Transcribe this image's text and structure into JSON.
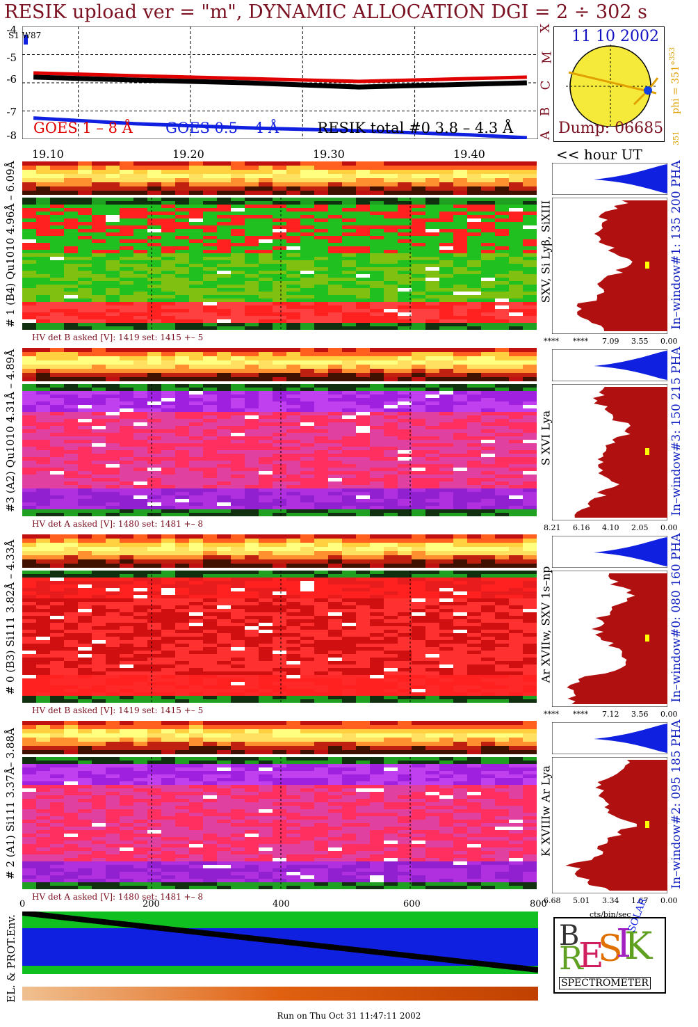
{
  "title": "RESIK upload ver = \"m\", DYNAMIC ALLOCATION  DGI =   2 ÷ 302 s",
  "sun": {
    "date": "11 10 2002",
    "dump": "Dump: 06685",
    "phi_label": "phi = 351°",
    "phi_sup": "353",
    "phi_bottom": "351"
  },
  "goes": {
    "corner_label": "S1 W87",
    "classes": [
      "X",
      "M",
      "C",
      "B",
      "A"
    ],
    "y_ticks": [
      "-4",
      "-5",
      "-6",
      "-7",
      "-8"
    ],
    "legend": [
      {
        "text": "GOES 1 – 8 Å",
        "color": "#e00000"
      },
      {
        "text": "GOES 0.5 – 4 Å",
        "color": "#1020e0"
      },
      {
        "text": "RESIK total #0  3.8 – 4.3 Å",
        "color": "#000000"
      }
    ]
  },
  "time_axis": {
    "ticks": [
      "19.10",
      "19.20",
      "19.30",
      "19.40"
    ],
    "unit": "<< hour UT"
  },
  "panels": [
    {
      "label": "# 1 (B4) Qu1010 4.96Å – 6.09Å",
      "lines": "SXV, Si Lyβ, SiXIII",
      "hv": "HV det B asked [V]:  1419 set:  1415  +–    5",
      "window": "In–window#1:  135 200 PHA",
      "pha_ticks": [
        "****",
        "****",
        "7.09",
        "3.55",
        "0.00"
      ],
      "theme": "green",
      "band": "yellow"
    },
    {
      "label": "#3 (A2) Qu1010  4.31Å – 4.89Å",
      "lines": "S XVI Lya",
      "hv": "HV det A asked [V]:  1480 set:  1481  +–    8",
      "window": "In–window#3:  150 215 PHA",
      "pha_ticks": [
        "8.21",
        "6.16",
        "4.10",
        "2.05",
        "0.00"
      ],
      "theme": "purple",
      "band": "yellow"
    },
    {
      "label": "# 0 (B3) Si111  3.82Å – 4.33Å",
      "lines": "Ar XVIIw,  SXV 1s–np",
      "hv": "HV det B asked [V]:  1419 set:  1415  +–    5",
      "window": "In–window#0:  080 160 PHA",
      "pha_ticks": [
        "****",
        "****",
        "7.12",
        "3.56",
        "0.00"
      ],
      "theme": "red",
      "band": "yellow"
    },
    {
      "label": "# 2 (A1) Si111  3.37Å– 3.88Å",
      "lines": "K XVIIIw  Ar Lya",
      "hv": "HV det A asked [V]:  1480 set:  1481  +–    8",
      "window": "In–window#2:  095 185 PHA",
      "pha_ticks": [
        "6.68",
        "5.01",
        "3.34",
        "1.67",
        "0.00"
      ],
      "theme": "purple",
      "band": "yellow"
    }
  ],
  "bin_axis": {
    "ticks": [
      "0",
      "200",
      "400",
      "600",
      "800"
    ]
  },
  "pha_unit": "cts/bin/sec",
  "env_label": "EL. & PROT.Env.",
  "logo": {
    "letters": [
      "B",
      "R",
      "E",
      "S",
      "I",
      "K",
      "SOLAR"
    ],
    "word": "SPECTROMETER"
  },
  "footer": "Run on Thu Oct 31 11:47:11 2002",
  "chart_data": {
    "type": "line",
    "title": "RESIK upload ver = \"m\", DYNAMIC ALLOCATION  DGI =   2 ÷ 302 s",
    "x_ticks": [
      "19.10",
      "19.20",
      "19.30",
      "19.40"
    ],
    "xlabel": "<< hour UT",
    "ylim": [
      -8,
      -4
    ],
    "series": [
      {
        "name": "GOES 1 – 8 Å",
        "color": "#e00000",
        "x": [
          19.06,
          19.15,
          19.25,
          19.35,
          19.45,
          19.5
        ],
        "values": [
          -5.65,
          -5.75,
          -5.85,
          -5.95,
          -5.85,
          -5.8
        ]
      },
      {
        "name": "GOES 0.5 – 4 Å",
        "color": "#1020e0",
        "x": [
          19.06,
          19.15,
          19.25,
          19.35,
          19.45,
          19.5
        ],
        "values": [
          -7.25,
          -7.45,
          -7.6,
          -7.7,
          -7.85,
          -7.95
        ]
      },
      {
        "name": "RESIK total #0  3.8 – 4.3 Å",
        "color": "#000000",
        "x": [
          19.06,
          19.15,
          19.25,
          19.35,
          19.45,
          19.5
        ],
        "values": [
          -5.8,
          -5.9,
          -6.0,
          -6.15,
          -6.05,
          -6.0
        ]
      }
    ]
  }
}
